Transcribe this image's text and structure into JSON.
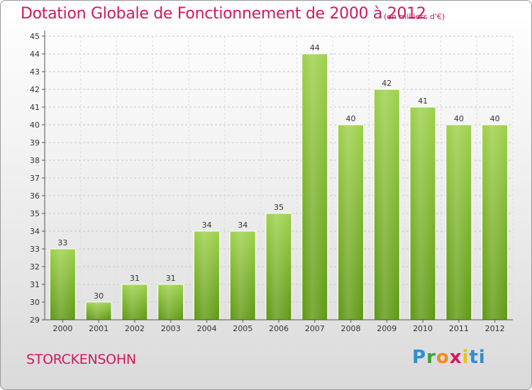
{
  "header": {
    "title": "Dotation Globale de Fonctionnement de 2000 à 2012",
    "unit": "(en milliers d'€)"
  },
  "footer": {
    "commune": "STORCKENSOHN",
    "logo_text": "Proxiti"
  },
  "colors": {
    "accent": "#d01a5e",
    "bar_top": "#9ed14b",
    "bar_bottom": "#5f9914"
  },
  "chart_data": {
    "type": "bar",
    "title": "Dotation Globale de Fonctionnement de 2000 à 2012",
    "xlabel": "",
    "ylabel": "",
    "categories": [
      "2000",
      "2001",
      "2002",
      "2003",
      "2004",
      "2005",
      "2006",
      "2007",
      "2008",
      "2009",
      "2010",
      "2011",
      "2012"
    ],
    "values": [
      33,
      30,
      31,
      31,
      34,
      34,
      35,
      44,
      40,
      42,
      41,
      40,
      40
    ],
    "ylim": [
      29,
      45
    ],
    "yticks": [
      29,
      30,
      31,
      32,
      33,
      34,
      35,
      36,
      37,
      38,
      39,
      40,
      41,
      42,
      43,
      44,
      45
    ],
    "grid": true,
    "legend": "none"
  }
}
